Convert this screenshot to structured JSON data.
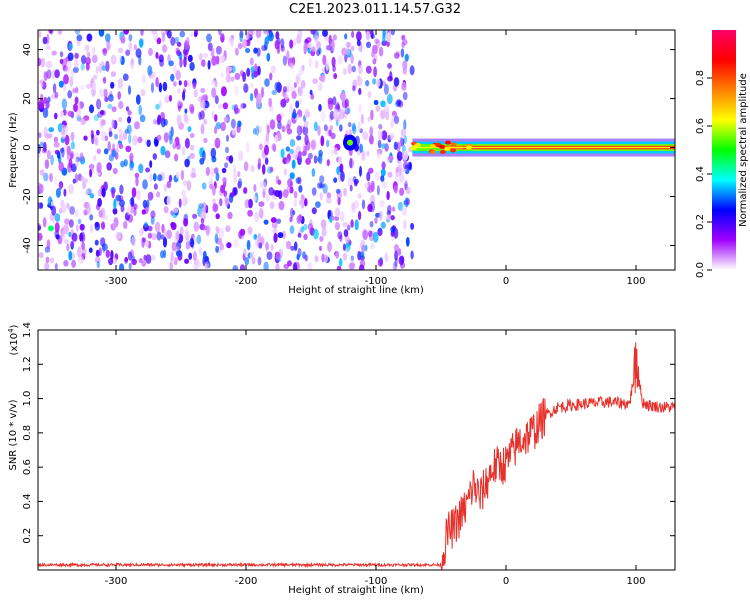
{
  "title": "C2E1.2023.011.14.57.G32",
  "chart_data": [
    {
      "type": "heatmap",
      "xlabel": "Height of straight line (km)",
      "ylabel": "Frequency (Hz)",
      "xlim": [
        -360,
        130
      ],
      "ylim": [
        -50,
        48
      ],
      "xticks": [
        -300,
        -200,
        -100,
        0,
        100
      ],
      "xtick_labels": [
        "-300",
        "-200",
        "-100",
        "0",
        "100"
      ],
      "yticks": [
        -40,
        -20,
        0,
        20,
        40
      ],
      "ytick_labels": [
        "-40",
        "-20",
        "0",
        "20",
        "40"
      ],
      "noise_region_x": [
        -360,
        -72
      ],
      "line_region_x": [
        -72,
        130
      ],
      "line_frequency": 0,
      "blob": {
        "x": -120,
        "y": 2
      },
      "colorbar": {
        "label": "Normalized spectral amplitude",
        "range": [
          0,
          1
        ],
        "ticks": [
          0.0,
          0.2,
          0.4,
          0.6,
          0.8
        ],
        "tick_labels": [
          "0.0",
          "0.2",
          "0.4",
          "0.6",
          "0.8"
        ],
        "colormap": [
          "#ffffff",
          "#a000ff",
          "#0000ff",
          "#00ffff",
          "#00ff00",
          "#ffff00",
          "#ff8000",
          "#ff0000",
          "#ff0066"
        ]
      }
    },
    {
      "type": "line",
      "xlabel": "Height of straight line (km)",
      "ylabel": "SNR (10 * v/v)",
      "scale_label": "(x10",
      "scale_exp": "4",
      "scale_close": ")",
      "xlim": [
        -360,
        130
      ],
      "ylim": [
        0,
        1.4
      ],
      "xticks": [
        -300,
        -200,
        -100,
        0,
        100
      ],
      "xtick_labels": [
        "-300",
        "-200",
        "-100",
        "0",
        "100"
      ],
      "yticks": [
        0.2,
        0.4,
        0.6,
        0.8,
        1.0,
        1.2,
        1.4
      ],
      "ytick_labels": [
        "0.2",
        "0.4",
        "0.6",
        "0.8",
        "1.0",
        "1.2",
        "1.4"
      ],
      "line_color": "#e8302a",
      "series": [
        {
          "x": [
            -360,
            -300,
            -200,
            -100,
            -50,
            -45,
            -40,
            -30,
            -25,
            -20,
            -10,
            0,
            10,
            20,
            30,
            40,
            60,
            80,
            95,
            100,
            105,
            110,
            120,
            130
          ],
          "values": [
            0.03,
            0.03,
            0.03,
            0.03,
            0.03,
            0.22,
            0.25,
            0.38,
            0.5,
            0.42,
            0.6,
            0.62,
            0.75,
            0.8,
            0.9,
            0.95,
            0.97,
            0.98,
            0.97,
            1.2,
            0.98,
            0.96,
            0.95,
            0.95
          ]
        }
      ]
    }
  ]
}
